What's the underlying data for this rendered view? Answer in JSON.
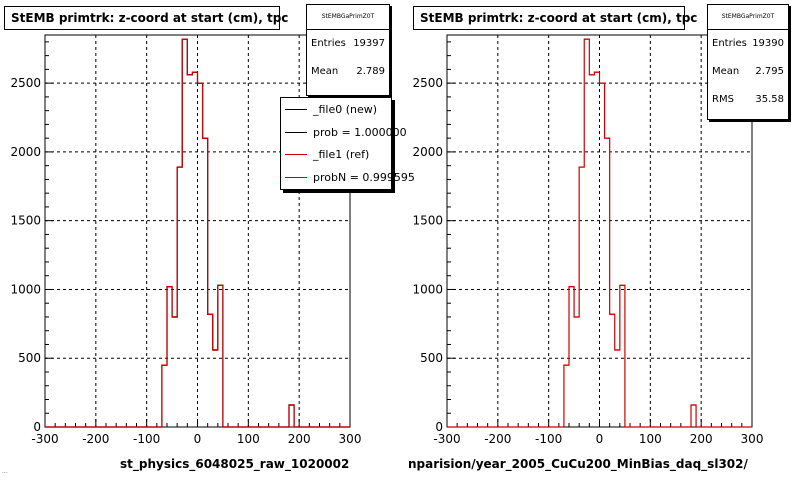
{
  "panels": [
    {
      "title": "StEMB primtrk: z-coord at start (cm), tpc",
      "stats": {
        "name": "StEMBGaPrimZ0T",
        "rows": [
          {
            "label": "Entries",
            "value": "19397"
          },
          {
            "label": "Mean",
            "value": "2.789"
          }
        ]
      },
      "legend": [
        {
          "label": "_file0 (new)",
          "color": "#000000"
        },
        {
          "label": "prob = 1.000000",
          "color": "#000000"
        },
        {
          "label": "_file1 (ref)",
          "color": "#cc0000"
        },
        {
          "label": "probN = 0.999595",
          "color": "#cc0000"
        }
      ],
      "footer": "st_physics_6048025_raw_1020002"
    },
    {
      "title": "StEMB primtrk: z-coord at start (cm), tpc",
      "stats": {
        "name": "StEMBGaPrimZ0T",
        "rows": [
          {
            "label": "Entries",
            "value": "19390"
          },
          {
            "label": "Mean",
            "value": "2.795"
          },
          {
            "label": "RMS",
            "value": "35.58"
          }
        ]
      },
      "footer": "nparision/year_2005_CuCu200_MinBias_daq_sl302/"
    }
  ],
  "footnote": "...",
  "chart_data": [
    {
      "type": "bar",
      "title": "StEMB primtrk: z-coord at start (cm), tpc",
      "xlim": [
        -300,
        300
      ],
      "ylim": [
        0,
        2850
      ],
      "xticks": [
        -300,
        -200,
        -100,
        0,
        100,
        200,
        300
      ],
      "yticks": [
        0,
        500,
        1000,
        1500,
        2000,
        2500
      ],
      "grid": true,
      "legend_position": "top-right",
      "bin_edges": [
        -70,
        -60,
        -50,
        -40,
        -30,
        -20,
        -10,
        0,
        10,
        20,
        30,
        40,
        50,
        60,
        70,
        80,
        90,
        180,
        190,
        200
      ],
      "series": [
        {
          "name": "_file0 (new)",
          "color": "#000000",
          "values": [
            450,
            1020,
            800,
            1890,
            2820,
            2560,
            2580,
            2500,
            2100,
            820,
            560,
            1030,
            0,
            0,
            0,
            0,
            0,
            160,
            0
          ]
        },
        {
          "name": "_file1 (ref)",
          "color": "#cc0000",
          "values": [
            450,
            1020,
            800,
            1890,
            2820,
            2560,
            2580,
            2500,
            2100,
            820,
            560,
            1030,
            0,
            0,
            0,
            0,
            0,
            160,
            0
          ]
        }
      ]
    },
    {
      "type": "bar",
      "title": "StEMB primtrk: z-coord at start (cm), tpc",
      "xlim": [
        -300,
        300
      ],
      "ylim": [
        0,
        2850
      ],
      "xticks": [
        -300,
        -200,
        -100,
        0,
        100,
        200,
        300
      ],
      "yticks": [
        0,
        500,
        1000,
        1500,
        2000,
        2500
      ],
      "grid": true,
      "bin_edges": [
        -70,
        -60,
        -50,
        -40,
        -30,
        -20,
        -10,
        0,
        10,
        20,
        30,
        40,
        50,
        60,
        70,
        80,
        90,
        180,
        190,
        200
      ],
      "series": [
        {
          "color": "#cc0000",
          "values": [
            450,
            1020,
            800,
            1890,
            2820,
            2560,
            2580,
            2500,
            2100,
            820,
            560,
            1030,
            0,
            0,
            0,
            0,
            0,
            160,
            0
          ]
        }
      ]
    }
  ]
}
